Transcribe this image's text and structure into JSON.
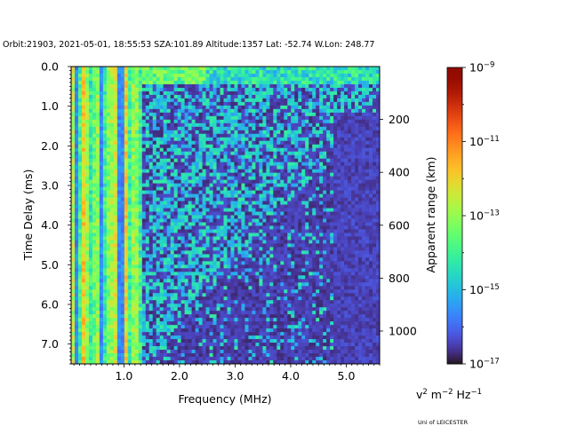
{
  "chart_data": {
    "type": "heatmap",
    "title": "Orbit:21903, 2021-05-01, 18:55:53 SZA:101.89 Altitude:1357 Lat: -52.74 W.Lon: 248.77",
    "xlabel": "Frequency (MHz)",
    "ylabel": "Time Delay (ms)",
    "y2label": "Apparent range (km)",
    "colorbar_label_base": "v",
    "colorbar_label_sup1": "2",
    "colorbar_label_mid": " m",
    "colorbar_label_sup2": "−2",
    "colorbar_label_end": " Hz",
    "colorbar_label_sup3": "−1",
    "credit": "Uni of LEICESTER",
    "xlim": [
      0.05,
      5.6
    ],
    "ylim": [
      7.5,
      0.0
    ],
    "y2lim": [
      1124.2,
      0
    ],
    "colorbar_range_log10": [
      -17,
      -9
    ],
    "colorbar_scale": "log",
    "colormap": "turbo",
    "x_ticks": [
      1.0,
      2.0,
      3.0,
      4.0,
      5.0
    ],
    "x_tick_labels": [
      "1.0",
      "2.0",
      "3.0",
      "4.0",
      "5.0"
    ],
    "y_ticks": [
      0.0,
      1.0,
      2.0,
      3.0,
      4.0,
      5.0,
      6.0,
      7.0
    ],
    "y_tick_labels": [
      "0.0",
      "1.0",
      "2.0",
      "3.0",
      "4.0",
      "5.0",
      "6.0",
      "7.0"
    ],
    "y2_ticks": [
      200,
      400,
      600,
      800,
      1000
    ],
    "y2_tick_labels": [
      "200",
      "400",
      "600",
      "800",
      "1000"
    ],
    "colorbar_ticks_exp": [
      -9,
      -11,
      -13,
      -15,
      -17
    ],
    "colorbar_tick_mantissa": "10",
    "colorbar_tick_exponents": [
      "−9",
      "−11",
      "−13",
      "−15",
      "−17"
    ],
    "grid": false
  }
}
